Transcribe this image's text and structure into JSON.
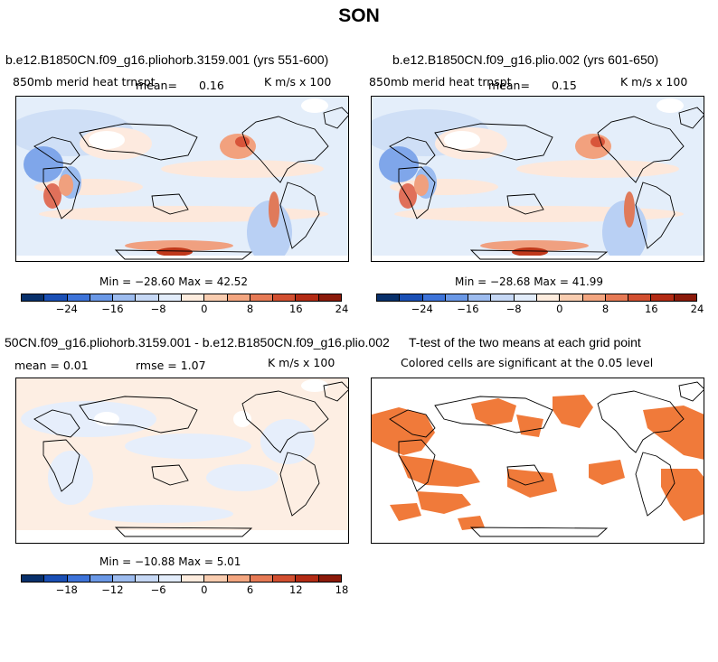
{
  "page": {
    "title": "SON"
  },
  "panels": [
    {
      "title": "b.e12.B1850CN.f09_g16.pliohorb.3159.001 (yrs 551-600)",
      "variable": "850mb merid heat trnspt",
      "mean_label": "mean=",
      "mean_value": "0.16",
      "units": "K m/s x 100",
      "min_max": "Min = −28.60 Max =   42.52"
    },
    {
      "title": "b.e12.B1850CN.f09_g16.plio.002 (yrs 601-650)",
      "variable": "850mb merid heat trnspt",
      "mean_label": "mean=",
      "mean_value": "0.15",
      "units": "K m/s x 100",
      "min_max": "Min = −28.68 Max =   41.99"
    },
    {
      "title": "50CN.f09_g16.pliohorb.3159.001 - b.e12.B1850CN.f09_g16.plio.002",
      "mean_text": "mean =    0.01",
      "rmse_text": "rmse =    1.07",
      "units": "K m/s x 100",
      "min_max": "Min = −10.88 Max =    5.01"
    },
    {
      "title": "T-test of the two means at each grid point",
      "subtitle": "Colored cells are significant at the 0.05 level"
    }
  ],
  "colorbars": {
    "top": {
      "labels": [
        "−24",
        "−16",
        "−8",
        "0",
        "8",
        "16",
        "24"
      ]
    },
    "diff": {
      "labels": [
        "−18",
        "−12",
        "−6",
        "0",
        "6",
        "12",
        "18"
      ]
    },
    "colors": [
      "#08306b",
      "#1a4fb5",
      "#3d73d9",
      "#6a98e6",
      "#9dbcef",
      "#c6d8f5",
      "#e2ecfa",
      "#fdecde",
      "#f9cdb0",
      "#f3a680",
      "#e67a55",
      "#d24f30",
      "#b32b14",
      "#8b1a0a"
    ]
  },
  "significance_color": "#f07a3a"
}
